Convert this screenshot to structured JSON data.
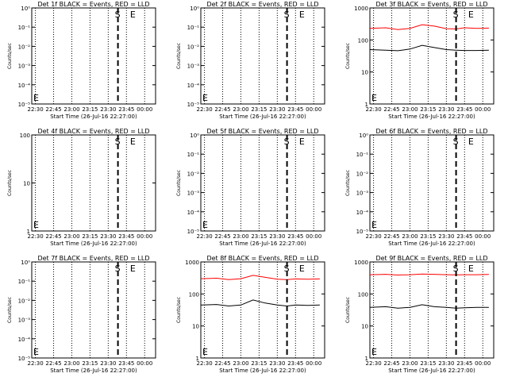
{
  "chart_data": [
    {
      "id": "det1f",
      "type": "line",
      "title": "Det 1f BLACK = Events, RED = LLD",
      "xlabel": "Start Time (26-Jul-16 22:27:00)",
      "ylabel": "Counts/sec",
      "xticks": [
        "22:30",
        "22:45",
        "23:00",
        "23:15",
        "23:30",
        "23:45",
        "00:00"
      ],
      "yticks": [
        "10⁰",
        "10⁻¹",
        "10⁻²",
        "10⁻³",
        "10⁻⁴",
        "10⁻⁵"
      ],
      "yscale": "log",
      "ylim": [
        1e-06,
        1
      ],
      "markers": [
        {
          "label": "S",
          "time": "23:38"
        },
        {
          "label": "E",
          "time": "23:48"
        }
      ],
      "series": []
    },
    {
      "id": "det2f",
      "type": "line",
      "title": "Det 2f BLACK = Events, RED = LLD",
      "xlabel": "Start Time (26-Jul-16 22:27:00)",
      "ylabel": "Counts/sec",
      "xticks": [
        "22:30",
        "22:45",
        "23:00",
        "23:15",
        "23:30",
        "23:45",
        "00:00"
      ],
      "yticks": [
        "10⁰",
        "10⁻¹",
        "10⁻²",
        "10⁻³",
        "10⁻⁴",
        "10⁻⁵"
      ],
      "yscale": "log",
      "ylim": [
        1e-06,
        1
      ],
      "markers": [
        {
          "label": "S",
          "time": "23:38"
        },
        {
          "label": "E",
          "time": "23:48"
        }
      ],
      "series": []
    },
    {
      "id": "det3f",
      "type": "line",
      "title": "Det 3f BLACK = Events, RED = LLD",
      "xlabel": "Start Time (26-Jul-16 22:27:00)",
      "ylabel": "Counts/sec",
      "xticks": [
        "22:30",
        "22:45",
        "23:00",
        "23:15",
        "23:30",
        "23:45",
        "00:00"
      ],
      "yticks": [
        "1000",
        "100",
        "10",
        "1"
      ],
      "yscale": "log",
      "ylim": [
        1,
        1000
      ],
      "markers": [
        {
          "label": "S",
          "time": "23:38"
        },
        {
          "label": "E",
          "time": "23:48"
        }
      ],
      "series": [
        {
          "color": "#ff0000",
          "x": [
            "22:27",
            "22:40",
            "22:50",
            "23:00",
            "23:10",
            "23:20",
            "23:30",
            "23:38",
            "23:45",
            "23:55",
            "00:05"
          ],
          "y": [
            230,
            240,
            210,
            230,
            300,
            270,
            225,
            220,
            240,
            230,
            235
          ]
        },
        {
          "color": "#000000",
          "x": [
            "22:27",
            "22:40",
            "22:50",
            "23:00",
            "23:10",
            "23:20",
            "23:30",
            "23:38",
            "23:45",
            "23:55",
            "00:05"
          ],
          "y": [
            50,
            48,
            46,
            52,
            68,
            58,
            50,
            48,
            47,
            47,
            48
          ]
        }
      ]
    },
    {
      "id": "det4f",
      "type": "line",
      "title": "Det 4f BLACK = Events, RED = LLD",
      "xlabel": "Start Time (26-Jul-16 22:27:00)",
      "ylabel": "Counts/sec",
      "xticks": [
        "22:30",
        "22:45",
        "23:00",
        "23:15",
        "23:30",
        "23:45",
        "00:00"
      ],
      "yticks": [
        "100",
        "10",
        "1"
      ],
      "yscale": "log",
      "ylim": [
        1,
        100
      ],
      "markers": [
        {
          "label": "S",
          "time": "23:38"
        },
        {
          "label": "E",
          "time": "23:48"
        }
      ],
      "series": []
    },
    {
      "id": "det5f",
      "type": "line",
      "title": "Det 5f BLACK = Events, RED = LLD",
      "xlabel": "Start Time (26-Jul-16 22:27:00)",
      "ylabel": "Counts/sec",
      "xticks": [
        "22:30",
        "22:45",
        "23:00",
        "23:15",
        "23:30",
        "23:45",
        "00:00"
      ],
      "yticks": [
        "10⁰",
        "10⁻¹",
        "10⁻²",
        "10⁻³",
        "10⁻⁴",
        "10⁻⁵"
      ],
      "yscale": "log",
      "ylim": [
        1e-06,
        1
      ],
      "markers": [
        {
          "label": "S",
          "time": "23:38"
        },
        {
          "label": "E",
          "time": "23:48"
        }
      ],
      "series": []
    },
    {
      "id": "det6f",
      "type": "line",
      "title": "Det 6f BLACK = Events, RED = LLD",
      "xlabel": "Start Time (26-Jul-16 22:27:00)",
      "ylabel": "Counts/sec",
      "xticks": [
        "22:30",
        "22:45",
        "23:00",
        "23:15",
        "23:30",
        "23:45",
        "00:00"
      ],
      "yticks": [
        "10⁰",
        "10⁻¹",
        "10⁻²",
        "10⁻³",
        "10⁻⁴",
        "10⁻⁵"
      ],
      "yscale": "log",
      "ylim": [
        1e-06,
        1
      ],
      "markers": [
        {
          "label": "S",
          "time": "23:38"
        },
        {
          "label": "E",
          "time": "23:48"
        }
      ],
      "series": []
    },
    {
      "id": "det7f",
      "type": "line",
      "title": "Det 7f BLACK = Events, RED = LLD",
      "xlabel": "Start Time (26-Jul-16 22:27:00)",
      "ylabel": "Counts/sec",
      "xticks": [
        "22:30",
        "22:45",
        "23:00",
        "23:15",
        "23:30",
        "23:45",
        "00:00"
      ],
      "yticks": [
        "10⁰",
        "10⁻¹",
        "10⁻²",
        "10⁻³",
        "10⁻⁴",
        "10⁻⁵"
      ],
      "yscale": "log",
      "ylim": [
        1e-06,
        1
      ],
      "markers": [
        {
          "label": "S",
          "time": "23:38"
        },
        {
          "label": "E",
          "time": "23:48"
        }
      ],
      "series": []
    },
    {
      "id": "det8f",
      "type": "line",
      "title": "Det 8f BLACK = Events, RED = LLD",
      "xlabel": "Start Time (26-Jul-16 22:27:00)",
      "ylabel": "Counts/sec",
      "xticks": [
        "22:30",
        "22:45",
        "23:00",
        "23:15",
        "23:30",
        "23:45",
        "00:00"
      ],
      "yticks": [
        "1000",
        "100",
        "10",
        "1"
      ],
      "yscale": "log",
      "ylim": [
        1,
        1000
      ],
      "markers": [
        {
          "label": "S",
          "time": "23:38"
        },
        {
          "label": "E",
          "time": "23:48"
        }
      ],
      "series": [
        {
          "color": "#ff0000",
          "x": [
            "22:27",
            "22:40",
            "22:50",
            "23:00",
            "23:10",
            "23:20",
            "23:30",
            "23:38",
            "23:45",
            "23:55",
            "00:05"
          ],
          "y": [
            300,
            310,
            280,
            300,
            380,
            330,
            290,
            280,
            295,
            290,
            295
          ]
        },
        {
          "color": "#000000",
          "x": [
            "22:27",
            "22:40",
            "22:50",
            "23:00",
            "23:10",
            "23:20",
            "23:30",
            "23:38",
            "23:45",
            "23:55",
            "00:05"
          ],
          "y": [
            45,
            47,
            42,
            45,
            65,
            52,
            45,
            42,
            45,
            44,
            45
          ]
        }
      ]
    },
    {
      "id": "det9f",
      "type": "line",
      "title": "Det 9f BLACK = Events, RED = LLD",
      "xlabel": "Start Time (26-Jul-16 22:27:00)",
      "ylabel": "Counts/sec",
      "xticks": [
        "22:30",
        "22:45",
        "23:00",
        "23:15",
        "23:30",
        "23:45",
        "00:00"
      ],
      "yticks": [
        "1000",
        "100",
        "10",
        "1"
      ],
      "yscale": "log",
      "ylim": [
        1,
        1000
      ],
      "markers": [
        {
          "label": "S",
          "time": "23:38"
        },
        {
          "label": "E",
          "time": "23:48"
        }
      ],
      "series": [
        {
          "color": "#ff0000",
          "x": [
            "22:27",
            "22:40",
            "22:50",
            "23:00",
            "23:10",
            "23:20",
            "23:30",
            "23:38",
            "23:45",
            "23:55",
            "00:05"
          ],
          "y": [
            400,
            410,
            390,
            400,
            420,
            410,
            400,
            395,
            400,
            400,
            405
          ]
        },
        {
          "color": "#000000",
          "x": [
            "22:27",
            "22:40",
            "22:50",
            "23:00",
            "23:10",
            "23:20",
            "23:30",
            "23:38",
            "23:45",
            "23:55",
            "00:05"
          ],
          "y": [
            38,
            40,
            36,
            38,
            46,
            40,
            38,
            36,
            37,
            38,
            38
          ]
        }
      ]
    }
  ]
}
